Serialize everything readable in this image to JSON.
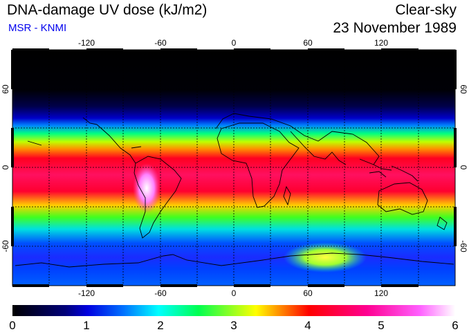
{
  "header": {
    "title": "DNA-damage UV dose (kJ/m2)",
    "subtitle": "MSR - KNMI",
    "condition": "Clear-sky",
    "date": "23 November 1989"
  },
  "map": {
    "lon_ticks": [
      "-120",
      "-60",
      "0",
      "60",
      "120"
    ],
    "lat_ticks": [
      "60",
      "0",
      "-60"
    ],
    "lon_range": [
      -180,
      180
    ],
    "lat_range": [
      -90,
      90
    ],
    "grid": true,
    "gridline_style": "dotted"
  },
  "colorbar": {
    "tick_labels": [
      "0",
      "1",
      "2",
      "3",
      "4",
      "5",
      "6"
    ],
    "range": [
      0,
      6
    ],
    "colors": [
      "#000000",
      "#0000a0",
      "#0060ff",
      "#00ffff",
      "#00ff40",
      "#ffff00",
      "#ff0000",
      "#ff0090",
      "#ff40ff",
      "#ffffff"
    ]
  }
}
